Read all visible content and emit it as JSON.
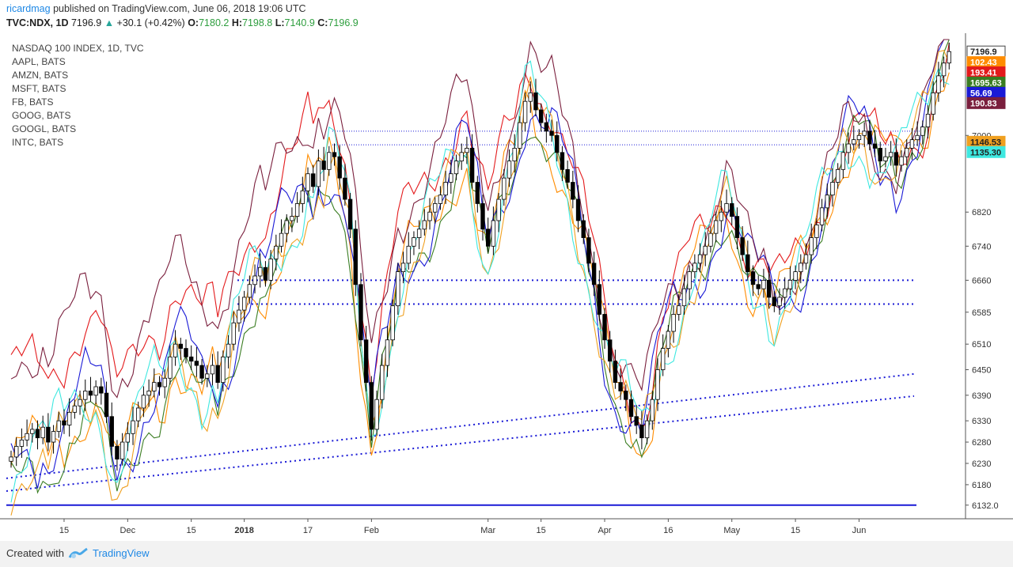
{
  "header": {
    "username": "ricardmag",
    "published_text": "published on TradingView.com, June 06, 2018 19:06 UTC",
    "symbol": "TVC:NDX, 1D",
    "last": "7196.9",
    "change": "+30.1 (+0.42%)",
    "o_label": "O:",
    "o": "7180.2",
    "h_label": "H:",
    "h": "7198.8",
    "l_label": "L:",
    "l": "7140.9",
    "c_label": "C:",
    "c": "7196.9",
    "up_arrow": "▲"
  },
  "legend": [
    "NASDAQ 100 INDEX, 1D, TVC",
    "AAPL, BATS",
    "AMZN, BATS",
    "MSFT, BATS",
    "FB, BATS",
    "GOOG, BATS",
    "GOOGL, BATS",
    "INTC, BATS"
  ],
  "footer": {
    "created_with": "Created with",
    "brand": "TradingView"
  },
  "colors": {
    "ndx": "#000000",
    "aapl": "#ff8c00",
    "amzn": "#e31a1c",
    "msft": "#3a7d22",
    "fb": "#1a1ad6",
    "goog": "#7a1f3d",
    "googl": "#f0a020",
    "intc": "#3ee8e0",
    "trend": "#1a1ad6",
    "hline": "#1a1ad6"
  },
  "chart_data": {
    "type": "candlestick",
    "title": "NASDAQ 100 INDEX, 1D, TVC",
    "x_ticks": [
      "15",
      "Dec",
      "15",
      "2018",
      "17",
      "Feb",
      "Mar",
      "15",
      "Apr",
      "16",
      "May",
      "15",
      "Jun"
    ],
    "y_ticks": [
      "6132.0",
      "6180",
      "6230",
      "6280",
      "6330",
      "6390",
      "6450",
      "6510",
      "6585",
      "6660",
      "6740",
      "6820",
      "7000"
    ],
    "ylim": [
      6100,
      7240
    ],
    "price_labels": [
      {
        "text": "7196.9",
        "color": "#ffffff",
        "fg": "#222222",
        "v": 7196.9
      },
      {
        "text": "102.43",
        "color": "#ff8c00",
        "fg": "#ffffff",
        "v": 7172
      },
      {
        "text": "193.41",
        "color": "#e31a1c",
        "fg": "#ffffff",
        "v": 7148
      },
      {
        "text": "1695.63",
        "color": "#3a7d22",
        "fg": "#ffffff",
        "v": 7124
      },
      {
        "text": "56.69",
        "color": "#1a1ad6",
        "fg": "#ffffff",
        "v": 7100
      },
      {
        "text": "190.83",
        "color": "#7a1f3d",
        "fg": "#ffffff",
        "v": 7076
      },
      {
        "text": "1146.53",
        "color": "#f0a020",
        "fg": "#222222",
        "v": 6985
      },
      {
        "text": "1135.30",
        "color": "#3ee8e0",
        "fg": "#222222",
        "v": 6961
      }
    ],
    "ndx_close": [
      6245,
      6270,
      6285,
      6300,
      6310,
      6290,
      6315,
      6280,
      6305,
      6330,
      6320,
      6350,
      6365,
      6380,
      6400,
      6390,
      6410,
      6395,
      6340,
      6270,
      6240,
      6280,
      6300,
      6330,
      6360,
      6390,
      6400,
      6420,
      6410,
      6430,
      6480,
      6510,
      6500,
      6480,
      6470,
      6460,
      6430,
      6440,
      6460,
      6420,
      6480,
      6510,
      6560,
      6590,
      6620,
      6650,
      6670,
      6690,
      6660,
      6710,
      6740,
      6770,
      6800,
      6810,
      6840,
      6870,
      6910,
      6880,
      6940,
      6920,
      6960,
      6950,
      6900,
      6850,
      6780,
      6650,
      6520,
      6420,
      6310,
      6380,
      6460,
      6520,
      6600,
      6680,
      6700,
      6740,
      6760,
      6780,
      6800,
      6820,
      6840,
      6860,
      6890,
      6910,
      6940,
      6960,
      6970,
      6890,
      6840,
      6780,
      6740,
      6800,
      6850,
      6900,
      6940,
      6970,
      7030,
      7080,
      7100,
      7060,
      7030,
      7010,
      7000,
      6960,
      6920,
      6890,
      6850,
      6800,
      6760,
      6700,
      6650,
      6580,
      6520,
      6470,
      6420,
      6400,
      6380,
      6340,
      6320,
      6290,
      6330,
      6380,
      6450,
      6500,
      6540,
      6580,
      6600,
      6640,
      6680,
      6700,
      6720,
      6740,
      6770,
      6800,
      6820,
      6840,
      6810,
      6760,
      6720,
      6680,
      6650,
      6640,
      6660,
      6620,
      6600,
      6620,
      6640,
      6660,
      6680,
      6700,
      6720,
      6760,
      6790,
      6830,
      6860,
      6890,
      6920,
      6960,
      6980,
      6990,
      7000,
      7010,
      6980,
      6970,
      6940,
      6950,
      6960,
      6930,
      6950,
      6970,
      6990,
      7000,
      7020,
      7050,
      7100,
      7140,
      7170,
      7196.9
    ],
    "trendlines": [
      {
        "from": [
          0,
          6195
        ],
        "to": [
          1,
          6440
        ]
      },
      {
        "from": [
          0,
          6165
        ],
        "to": [
          1,
          6388
        ]
      }
    ],
    "hlines": [
      {
        "v": 6660,
        "style": "dotted"
      },
      {
        "v": 6604,
        "style": "dotted"
      },
      {
        "v": 7010,
        "style": "thin-dotted"
      },
      {
        "v": 6978,
        "style": "thin-dotted"
      },
      {
        "v": 6132,
        "style": "solid"
      }
    ]
  }
}
